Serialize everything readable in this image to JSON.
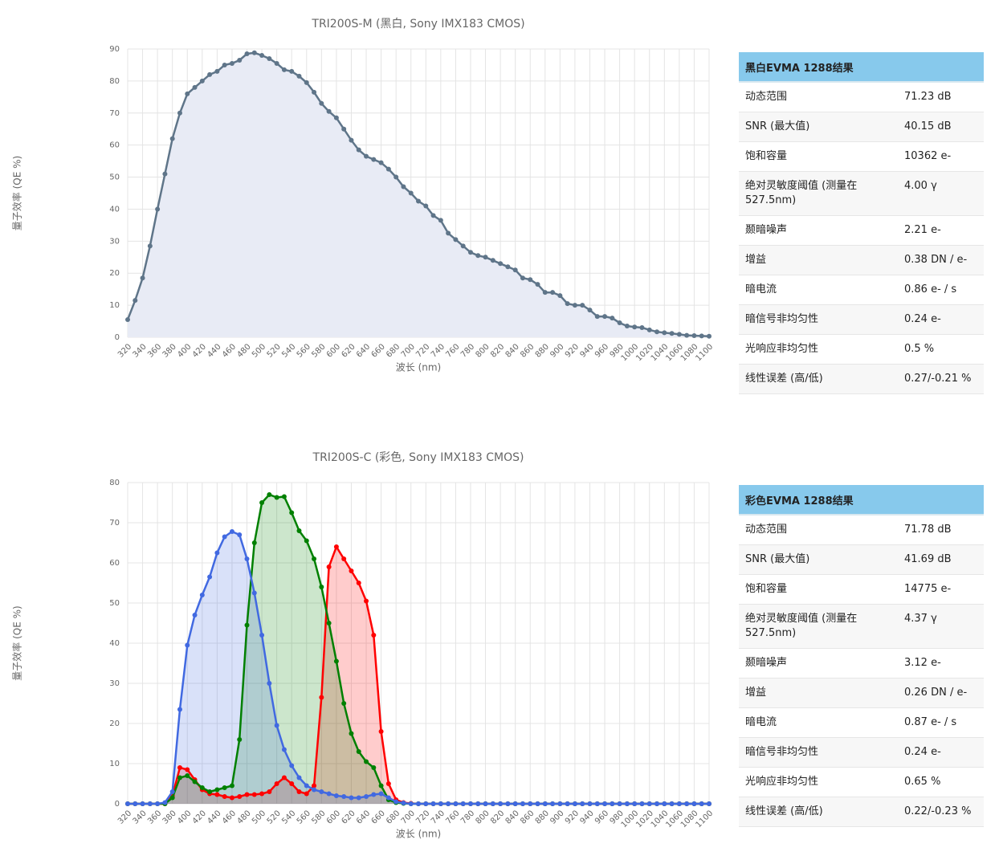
{
  "chart_data": [
    {
      "type": "line",
      "title": "TRI200S-M (黑白, Sony IMX183 CMOS)",
      "x_label": "波长 (nm)",
      "y_label": "量子效率 (QE %)",
      "x": [
        320,
        330,
        340,
        350,
        360,
        370,
        380,
        390,
        400,
        410,
        420,
        430,
        440,
        450,
        460,
        470,
        480,
        490,
        500,
        510,
        520,
        530,
        540,
        550,
        560,
        570,
        580,
        590,
        600,
        610,
        620,
        630,
        640,
        650,
        660,
        670,
        680,
        690,
        700,
        710,
        720,
        730,
        740,
        750,
        760,
        770,
        780,
        790,
        800,
        810,
        820,
        830,
        840,
        850,
        860,
        870,
        880,
        890,
        900,
        910,
        920,
        930,
        940,
        950,
        960,
        970,
        980,
        990,
        1000,
        1010,
        1020,
        1030,
        1040,
        1050,
        1060,
        1070,
        1080,
        1090,
        1100
      ],
      "values": [
        5.5,
        11.5,
        18.5,
        28.5,
        40,
        51,
        62,
        70,
        76,
        78,
        80,
        82,
        83,
        85,
        85.5,
        86.5,
        88.5,
        88.8,
        88,
        87,
        85.5,
        83.5,
        83,
        81.5,
        79.5,
        76.5,
        73,
        70.5,
        68.5,
        65,
        61.5,
        58.5,
        56.5,
        55.5,
        54.5,
        52.5,
        50,
        47,
        45,
        42.5,
        41,
        38,
        36.5,
        32.5,
        30.5,
        28.5,
        26.5,
        25.5,
        25,
        24,
        23,
        22,
        21,
        18.5,
        18,
        16.5,
        14,
        14,
        13,
        10.5,
        10,
        10,
        8.5,
        6.5,
        6.5,
        6,
        4.5,
        3.5,
        3.2,
        3,
        2.3,
        1.7,
        1.4,
        1.2,
        0.9,
        0.6,
        0.5,
        0.4,
        0.3
      ],
      "color": "#5f7589",
      "fill": "#e8ebf5",
      "xlim": [
        320,
        1100
      ],
      "ylim": [
        0,
        90
      ],
      "xticks": [
        320,
        340,
        360,
        380,
        400,
        420,
        440,
        460,
        480,
        500,
        520,
        540,
        560,
        580,
        600,
        620,
        640,
        660,
        680,
        700,
        720,
        740,
        760,
        780,
        800,
        820,
        840,
        860,
        880,
        900,
        920,
        940,
        960,
        980,
        1000,
        1020,
        1040,
        1060,
        1080,
        1100
      ],
      "yticks": [
        0,
        10,
        20,
        30,
        40,
        50,
        60,
        70,
        80,
        90
      ],
      "grid": true
    },
    {
      "type": "line",
      "title": "TRI200S-C (彩色, Sony IMX183 CMOS)",
      "x_label": "波长 (nm)",
      "y_label": "量子效率 (QE %)",
      "x": [
        320,
        330,
        340,
        350,
        360,
        370,
        380,
        390,
        400,
        410,
        420,
        430,
        440,
        450,
        460,
        470,
        480,
        490,
        500,
        510,
        520,
        530,
        540,
        550,
        560,
        570,
        580,
        590,
        600,
        610,
        620,
        630,
        640,
        650,
        660,
        670,
        680,
        690,
        700,
        710,
        720,
        730,
        740,
        750,
        760,
        770,
        780,
        790,
        800,
        810,
        820,
        830,
        840,
        850,
        860,
        870,
        880,
        890,
        900,
        910,
        920,
        930,
        940,
        950,
        960,
        970,
        980,
        990,
        1000,
        1010,
        1020,
        1030,
        1040,
        1050,
        1060,
        1070,
        1080,
        1090,
        1100
      ],
      "series": [
        {
          "color": "#ff0000",
          "values": [
            0,
            0,
            0,
            0,
            0,
            0,
            2,
            9,
            8.5,
            6,
            3.5,
            2.5,
            2.3,
            1.8,
            1.5,
            1.8,
            2.3,
            2.3,
            2.5,
            3,
            5,
            6.5,
            5,
            3,
            2.5,
            4.5,
            26.5,
            59,
            64,
            61,
            58,
            55,
            50.5,
            42,
            18,
            5,
            1,
            0.3,
            0.1,
            0,
            0,
            0,
            0,
            0,
            0,
            0,
            0,
            0,
            0,
            0,
            0,
            0,
            0,
            0,
            0,
            0,
            0,
            0,
            0,
            0,
            0,
            0,
            0,
            0,
            0,
            0,
            0,
            0,
            0,
            0,
            0,
            0,
            0,
            0,
            0,
            0,
            0,
            0,
            0
          ]
        },
        {
          "color": "#008000",
          "values": [
            0,
            0,
            0,
            0,
            0,
            0,
            1.5,
            6.5,
            7,
            5.5,
            4,
            3,
            3.5,
            4,
            4.5,
            16,
            44.5,
            65,
            75,
            77,
            76.3,
            76.5,
            72.5,
            68,
            65.5,
            61,
            54,
            45,
            35.5,
            25,
            17.5,
            13,
            10.5,
            9,
            4.5,
            1,
            0.3,
            0.1,
            0,
            0,
            0,
            0,
            0,
            0,
            0,
            0,
            0,
            0,
            0,
            0,
            0,
            0,
            0,
            0,
            0,
            0,
            0,
            0,
            0,
            0,
            0,
            0,
            0,
            0,
            0,
            0,
            0,
            0,
            0,
            0,
            0,
            0,
            0,
            0,
            0,
            0,
            0,
            0,
            0
          ]
        },
        {
          "color": "#4169e1",
          "values": [
            0,
            0,
            0,
            0,
            0,
            0.3,
            3,
            23.5,
            39.5,
            47,
            52,
            56.5,
            62.5,
            66.5,
            67.8,
            67,
            61,
            52.5,
            42,
            30,
            19.5,
            13.5,
            9.5,
            6.5,
            4.5,
            3.5,
            3,
            2.5,
            2,
            1.8,
            1.5,
            1.5,
            1.8,
            2.3,
            2.5,
            1.5,
            0.5,
            0.2,
            0,
            0,
            0,
            0,
            0,
            0,
            0,
            0,
            0,
            0,
            0,
            0,
            0,
            0,
            0,
            0,
            0,
            0,
            0,
            0,
            0,
            0,
            0,
            0,
            0,
            0,
            0,
            0,
            0,
            0,
            0,
            0,
            0,
            0,
            0,
            0,
            0,
            0,
            0,
            0,
            0
          ]
        }
      ],
      "xlim": [
        320,
        1100
      ],
      "ylim": [
        0,
        80
      ],
      "xticks": [
        320,
        340,
        360,
        380,
        400,
        420,
        440,
        460,
        480,
        500,
        520,
        540,
        560,
        580,
        600,
        620,
        640,
        660,
        680,
        700,
        720,
        740,
        760,
        780,
        800,
        820,
        840,
        860,
        880,
        900,
        920,
        940,
        960,
        980,
        1000,
        1020,
        1040,
        1060,
        1080,
        1100
      ],
      "yticks": [
        0,
        10,
        20,
        30,
        40,
        50,
        60,
        70,
        80
      ],
      "grid": true
    }
  ],
  "tables": [
    {
      "title": "黑白EVMA 1288结果",
      "rows": [
        [
          "动态范围",
          "71.23 dB"
        ],
        [
          "SNR (最大值)",
          "40.15 dB"
        ],
        [
          "饱和容量",
          "10362 e-"
        ],
        [
          "绝对灵敏度阈值 (测量在 527.5nm)",
          "4.00 γ"
        ],
        [
          "颞暗噪声",
          "2.21 e-"
        ],
        [
          "增益",
          "0.38 DN / e-"
        ],
        [
          "暗电流",
          "0.86 e- / s"
        ],
        [
          "暗信号非均匀性",
          "0.24 e-"
        ],
        [
          "光响应非均匀性",
          "0.5 %"
        ],
        [
          "线性误差 (高/低)",
          "0.27/-0.21 %"
        ]
      ]
    },
    {
      "title": "彩色EVMA 1288结果",
      "rows": [
        [
          "动态范围",
          "71.78 dB"
        ],
        [
          "SNR (最大值)",
          "41.69 dB"
        ],
        [
          "饱和容量",
          "14775 e-"
        ],
        [
          "绝对灵敏度阈值 (测量在 527.5nm)",
          "4.37 γ"
        ],
        [
          "颞暗噪声",
          "3.12 e-"
        ],
        [
          "增益",
          "0.26 DN / e-"
        ],
        [
          "暗电流",
          "0.87 e- / s"
        ],
        [
          "暗信号非均匀性",
          "0.24 e-"
        ],
        [
          "光响应非均匀性",
          "0.65 %"
        ],
        [
          "线性误差 (高/低)",
          "0.22/-0.23 %"
        ]
      ]
    }
  ]
}
